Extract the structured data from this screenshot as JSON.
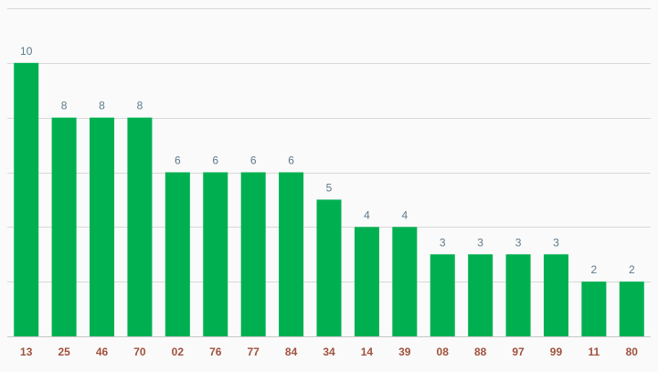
{
  "chart_data": {
    "type": "bar",
    "title": "",
    "xlabel": "",
    "ylabel": "",
    "categories": [
      "13",
      "25",
      "46",
      "70",
      "02",
      "76",
      "77",
      "84",
      "34",
      "14",
      "39",
      "08",
      "88",
      "97",
      "99",
      "11",
      "80"
    ],
    "values": [
      10,
      8,
      8,
      8,
      6,
      6,
      6,
      6,
      5,
      4,
      4,
      3,
      3,
      3,
      3,
      2,
      2
    ],
    "ylim": [
      0,
      12
    ],
    "grid": true,
    "legend": "none",
    "bar_color": "#00b050",
    "grid_color": "#d9d9d9",
    "value_label_color": "#5d7a8c",
    "category_label_color": "#a0523d"
  }
}
